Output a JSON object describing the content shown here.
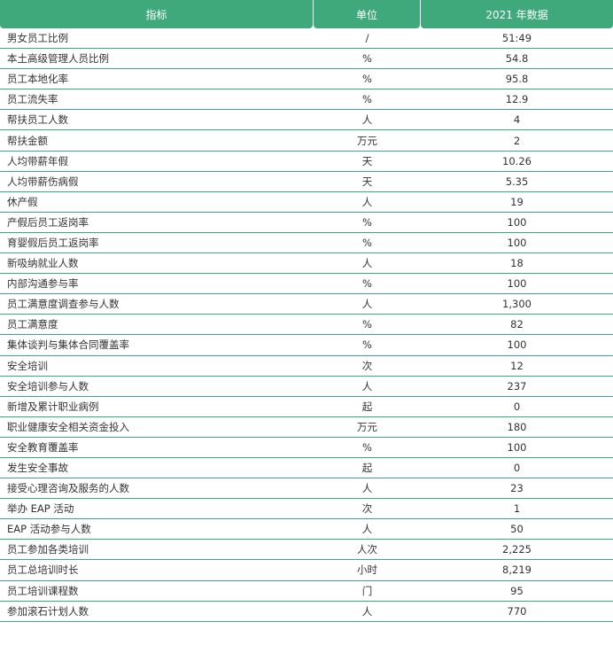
{
  "header": {
    "col1": "指标",
    "col2": "单位",
    "col3": "2021 年数据"
  },
  "rows": [
    {
      "indicator": "男女员工比例",
      "unit": "/",
      "value": "51:49"
    },
    {
      "indicator": "本土高级管理人员比例",
      "unit": "%",
      "value": "54.8"
    },
    {
      "indicator": "员工本地化率",
      "unit": "%",
      "value": "95.8"
    },
    {
      "indicator": "员工流失率",
      "unit": "%",
      "value": "12.9"
    },
    {
      "indicator": "帮扶员工人数",
      "unit": "人",
      "value": "4"
    },
    {
      "indicator": "帮扶金额",
      "unit": "万元",
      "value": "2"
    },
    {
      "indicator": "人均带薪年假",
      "unit": "天",
      "value": "10.26"
    },
    {
      "indicator": "人均带薪伤病假",
      "unit": "天",
      "value": "5.35"
    },
    {
      "indicator": "休产假",
      "unit": "人",
      "value": "19"
    },
    {
      "indicator": "产假后员工返岗率",
      "unit": "%",
      "value": "100"
    },
    {
      "indicator": "育婴假后员工返岗率",
      "unit": "%",
      "value": "100"
    },
    {
      "indicator": "新吸纳就业人数",
      "unit": "人",
      "value": "18"
    },
    {
      "indicator": "内部沟通参与率",
      "unit": "%",
      "value": "100"
    },
    {
      "indicator": "员工满意度调查参与人数",
      "unit": "人",
      "value": "1,300"
    },
    {
      "indicator": "员工满意度",
      "unit": "%",
      "value": "82"
    },
    {
      "indicator": "集体谈判与集体合同覆盖率",
      "unit": "%",
      "value": "100"
    },
    {
      "indicator": "安全培训",
      "unit": "次",
      "value": "12"
    },
    {
      "indicator": "安全培训参与人数",
      "unit": "人",
      "value": "237"
    },
    {
      "indicator": "新增及累计职业病例",
      "unit": "起",
      "value": "0"
    },
    {
      "indicator": "职业健康安全相关资金投入",
      "unit": "万元",
      "value": "180"
    },
    {
      "indicator": "安全教育覆盖率",
      "unit": "%",
      "value": "100"
    },
    {
      "indicator": "发生安全事故",
      "unit": "起",
      "value": "0"
    },
    {
      "indicator": "接受心理咨询及服务的人数",
      "unit": "人",
      "value": "23"
    },
    {
      "indicator": "举办 EAP 活动",
      "unit": "次",
      "value": "1"
    },
    {
      "indicator": "EAP 活动参与人数",
      "unit": "人",
      "value": "50"
    },
    {
      "indicator": "员工参加各类培训",
      "unit": "人次",
      "value": "2,225"
    },
    {
      "indicator": "员工总培训时长",
      "unit": "小时",
      "value": "8,219"
    },
    {
      "indicator": "员工培训课程数",
      "unit": "门",
      "value": "95"
    },
    {
      "indicator": "参加滚石计划人数",
      "unit": "人",
      "value": "770"
    }
  ],
  "colors": {
    "header_bg": "#3fa97c",
    "header_text": "#ffffff",
    "divider": "#3fa97c",
    "body_text": "#333333"
  }
}
